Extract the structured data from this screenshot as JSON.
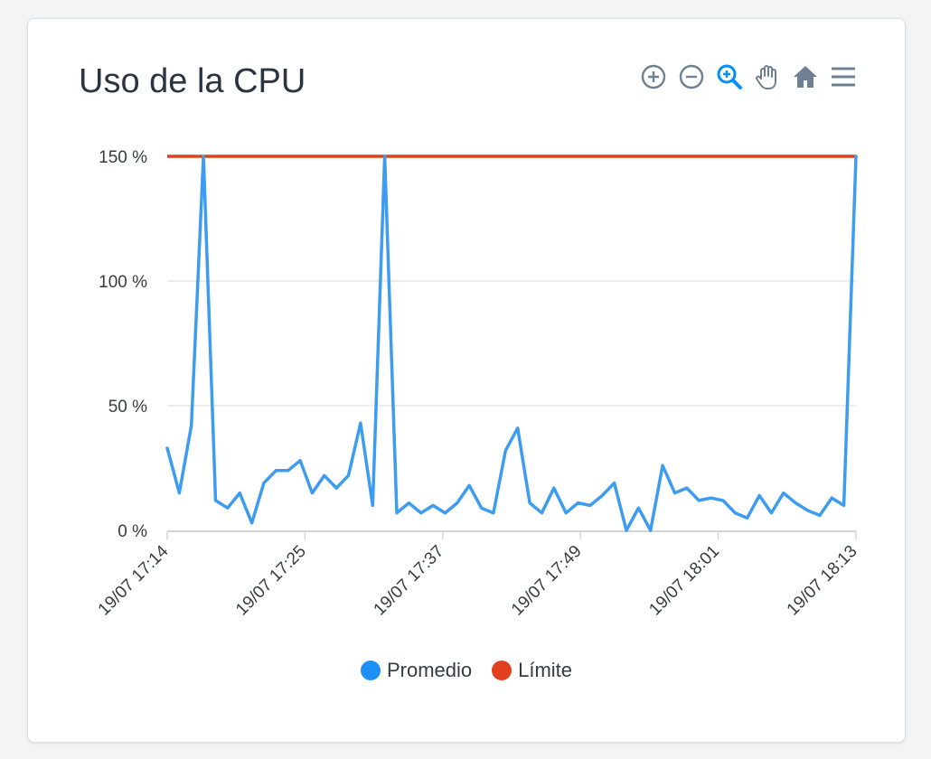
{
  "title": "Uso de la CPU",
  "toolbar": {
    "icons": [
      "zoom-in-icon",
      "zoom-out-icon",
      "selection-zoom-icon",
      "pan-hand-icon",
      "reset-home-icon",
      "menu-icon"
    ],
    "icon_color": "#6e8192",
    "active_color": "#008ffb"
  },
  "colors": {
    "promedio": "#3d9cf0",
    "limite": "#e0401e",
    "grid": "#e3e5e8",
    "axis_text": "#373d3f"
  },
  "chart_data": {
    "type": "line",
    "ylim": [
      0,
      150
    ],
    "y_ticks": [
      0,
      50,
      100,
      150
    ],
    "y_tick_labels": [
      "0 %",
      "50 %",
      "100 %",
      "150 %"
    ],
    "x_ticks": [
      0,
      12,
      24,
      36,
      48,
      60
    ],
    "x_tick_labels": [
      "19/07 17:14",
      "19/07 17:25",
      "19/07 17:37",
      "19/07 17:49",
      "19/07 18:01",
      "19/07 18:13"
    ],
    "xlim": [
      0,
      60
    ],
    "grid": true,
    "legend": "bottom",
    "series": [
      {
        "name": "Promedio",
        "values": [
          33,
          15,
          42,
          150,
          12,
          9,
          15,
          3,
          19,
          24,
          24,
          28,
          15,
          22,
          17,
          22,
          43,
          10,
          150,
          7,
          11,
          7,
          10,
          7,
          11,
          18,
          9,
          7,
          32,
          41,
          11,
          7,
          17,
          7,
          11,
          10,
          14,
          19,
          0,
          9,
          0,
          26,
          15,
          17,
          12,
          13,
          12,
          7,
          5,
          14,
          7,
          15,
          11,
          8,
          6,
          13,
          10,
          150
        ]
      },
      {
        "name": "Límite",
        "values": [
          150,
          150
        ],
        "x": [
          0,
          60
        ]
      }
    ]
  }
}
